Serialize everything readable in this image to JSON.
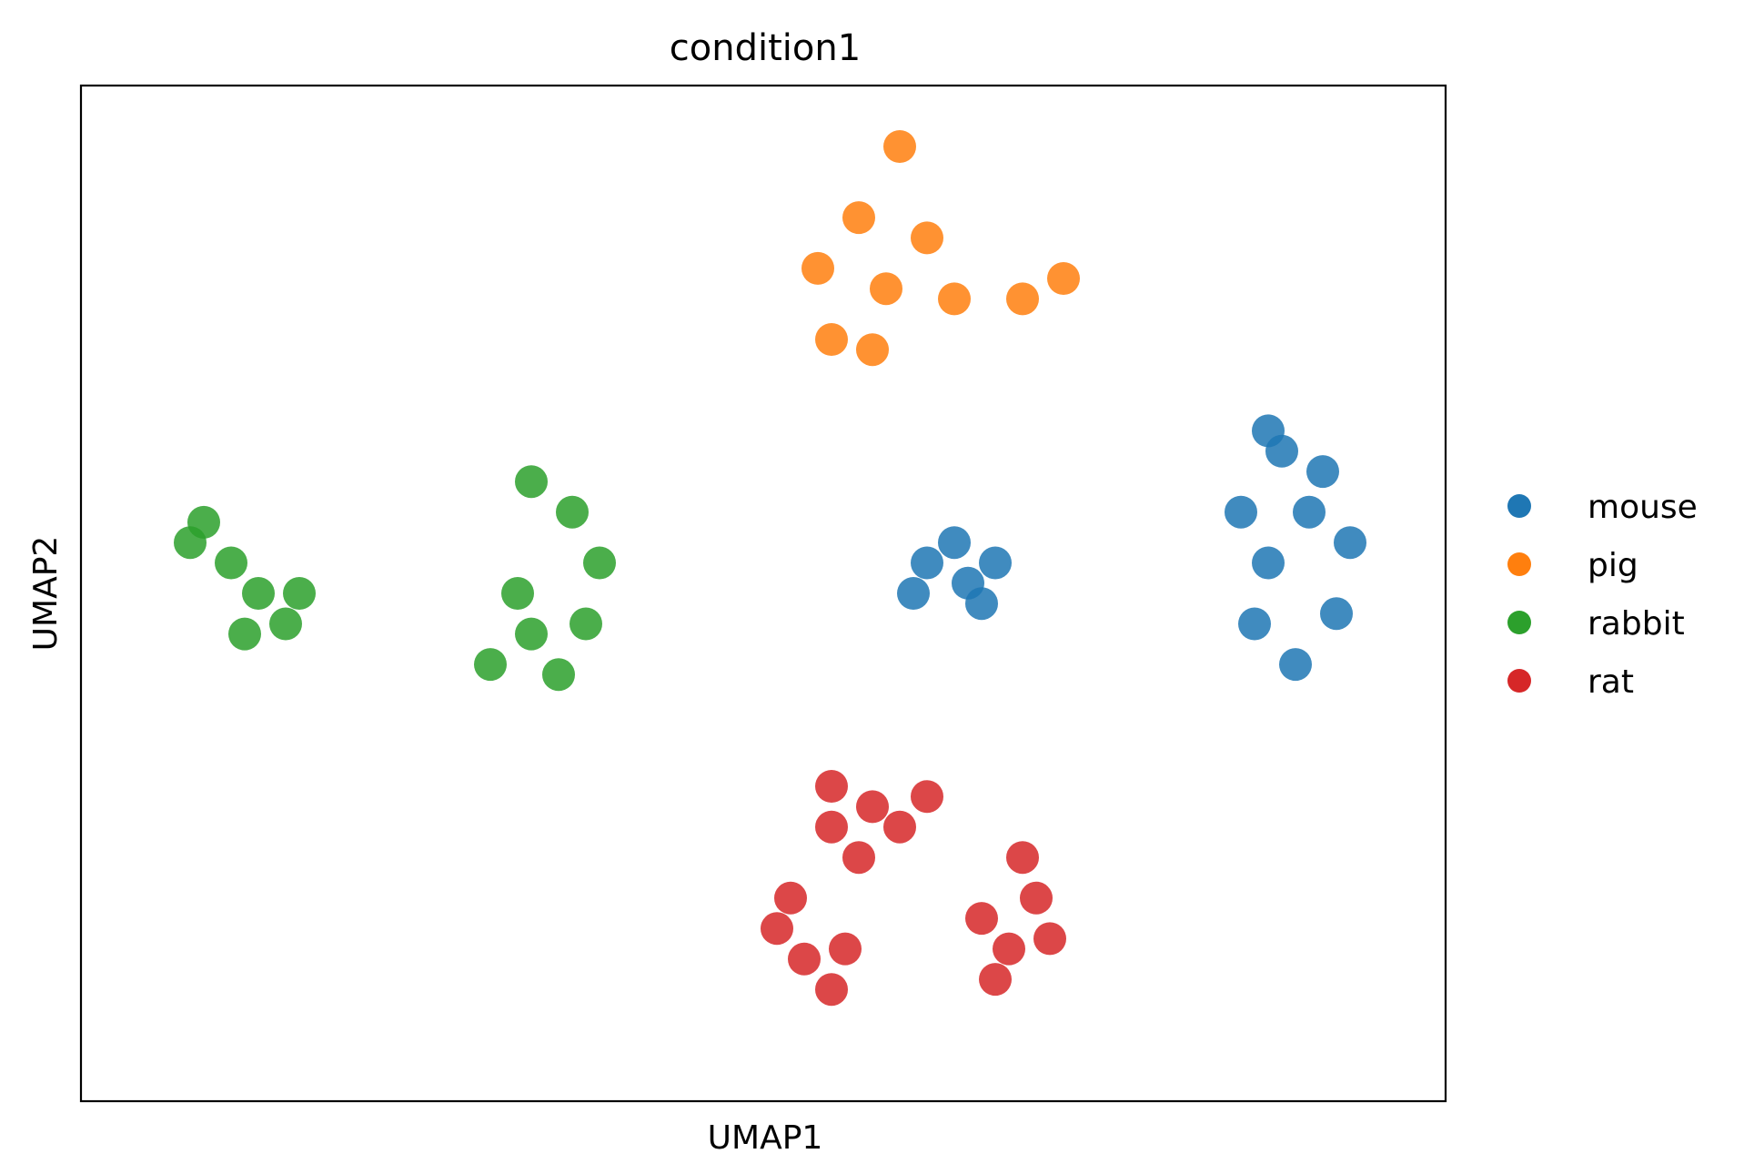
{
  "chart_data": {
    "type": "scatter",
    "title": "condition1",
    "xlabel": "UMAP1",
    "ylabel": "UMAP2",
    "xlim": [
      0,
      1
    ],
    "ylim": [
      0,
      1
    ],
    "grid": false,
    "ticks": false,
    "legend_placement": "right-outside",
    "series": [
      {
        "name": "mouse",
        "color": "#1f77b4",
        "clusters": [
          {
            "label_note": "large",
            "points": [
              [
                0.88,
                0.64
              ],
              [
                0.9,
                0.58
              ],
              [
                0.87,
                0.53
              ],
              [
                0.92,
                0.48
              ],
              [
                0.89,
                0.43
              ],
              [
                0.87,
                0.66
              ],
              [
                0.91,
                0.62
              ],
              [
                0.86,
                0.47
              ],
              [
                0.85,
                0.58
              ],
              [
                0.93,
                0.55
              ]
            ]
          },
          {
            "label_note": "small",
            "points": [
              [
                0.62,
                0.53
              ],
              [
                0.65,
                0.51
              ],
              [
                0.67,
                0.53
              ],
              [
                0.64,
                0.55
              ],
              [
                0.66,
                0.49
              ],
              [
                0.61,
                0.5
              ]
            ]
          }
        ]
      },
      {
        "name": "pig",
        "color": "#ff7f0e",
        "clusters": [
          {
            "points": [
              [
                0.54,
                0.82
              ],
              [
                0.57,
                0.87
              ],
              [
                0.59,
                0.8
              ],
              [
                0.62,
                0.85
              ],
              [
                0.55,
                0.75
              ],
              [
                0.58,
                0.74
              ],
              [
                0.64,
                0.79
              ],
              [
                0.69,
                0.79
              ],
              [
                0.72,
                0.81
              ],
              [
                0.6,
                0.94
              ]
            ]
          }
        ]
      },
      {
        "name": "rabbit",
        "color": "#2ca02c",
        "clusters": [
          {
            "points": [
              [
                0.08,
                0.55
              ],
              [
                0.11,
                0.53
              ],
              [
                0.13,
                0.5
              ],
              [
                0.15,
                0.47
              ],
              [
                0.09,
                0.57
              ],
              [
                0.12,
                0.46
              ],
              [
                0.16,
                0.5
              ]
            ]
          },
          {
            "points": [
              [
                0.3,
                0.43
              ],
              [
                0.33,
                0.46
              ],
              [
                0.35,
                0.42
              ],
              [
                0.37,
                0.47
              ],
              [
                0.38,
                0.53
              ],
              [
                0.36,
                0.58
              ],
              [
                0.33,
                0.61
              ],
              [
                0.32,
                0.5
              ]
            ]
          }
        ]
      },
      {
        "name": "rat",
        "color": "#d62728",
        "clusters": [
          {
            "points": [
              [
                0.55,
                0.31
              ],
              [
                0.58,
                0.29
              ],
              [
                0.6,
                0.27
              ],
              [
                0.57,
                0.24
              ],
              [
                0.62,
                0.3
              ],
              [
                0.55,
                0.27
              ]
            ]
          },
          {
            "points": [
              [
                0.51,
                0.17
              ],
              [
                0.53,
                0.14
              ],
              [
                0.55,
                0.11
              ],
              [
                0.52,
                0.2
              ],
              [
                0.56,
                0.15
              ]
            ]
          },
          {
            "points": [
              [
                0.66,
                0.18
              ],
              [
                0.68,
                0.15
              ],
              [
                0.7,
                0.2
              ],
              [
                0.71,
                0.16
              ],
              [
                0.67,
                0.12
              ],
              [
                0.69,
                0.24
              ]
            ]
          }
        ]
      }
    ]
  }
}
